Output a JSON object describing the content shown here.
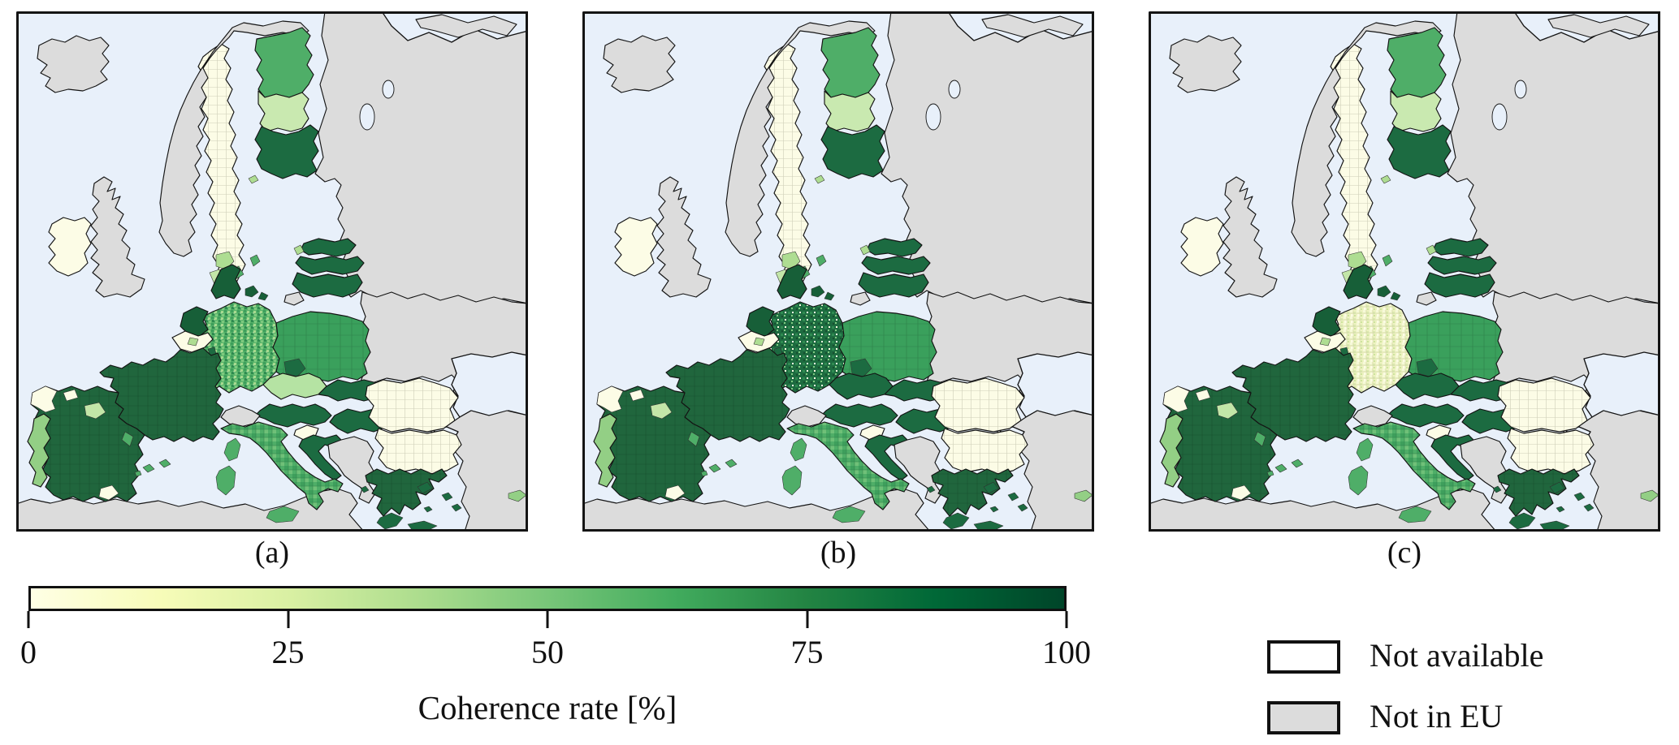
{
  "figure": {
    "background": "#ffffff",
    "panels": [
      {
        "id": "a",
        "label": "(a)",
        "region_overrides": {
          "germany": "de_mixed",
          "czechia": "light_green_cz"
        }
      },
      {
        "id": "b",
        "label": "(b)",
        "region_overrides": {
          "germany": "de_dark",
          "czechia": "dark_green"
        }
      },
      {
        "id": "c",
        "label": "(c)",
        "region_overrides": {
          "germany": "de_pale",
          "czechia": "dark_green"
        }
      }
    ],
    "colorbar": {
      "label": "Coherence rate [%]",
      "ticks": [
        "0",
        "25",
        "50",
        "75",
        "100"
      ],
      "tick_values": [
        0,
        25,
        50,
        75,
        100
      ],
      "range": [
        0,
        100
      ],
      "colormap": "YlGn",
      "gradient": [
        "#ffffe5",
        "#f7fcb9",
        "#d9f0a3",
        "#addd8e",
        "#78c679",
        "#41ab5d",
        "#238443",
        "#006837",
        "#004529"
      ]
    },
    "legend": {
      "items": [
        {
          "label": "Not available",
          "color": "#ffffff"
        },
        {
          "label": "Not in EU",
          "color": "#dcdcdc"
        }
      ]
    },
    "palette": {
      "ocean": "#e8f0fa",
      "not_in_eu": "#dcdcdc",
      "not_available": "#ffffff",
      "cream_solid": "#fcfce6",
      "cream_districts": "url(#patCream)",
      "pale_green": "#c9e9b0",
      "pale_green_2": "#c3e6a8",
      "light_green": "#aedd92",
      "light_green_cz": "#b5e3a3",
      "light_medium_green": "#93cf85",
      "medium_green": "#4fae68",
      "medium_districts": "url(#patPl)",
      "dark_green": "#1c6b41",
      "darker_green": "#175f38",
      "dark_districts": "url(#patFr)",
      "italy_districts": "url(#patIt)",
      "de_mixed": "url(#patDeA)",
      "de_dark": "url(#patDeB)",
      "de_pale": "url(#patDeC)"
    },
    "base_regions": {
      "ocean": "ocean",
      "russia": "not_in_eu",
      "whitesea": "ocean",
      "kola": "not_in_eu",
      "lake1": "ocean",
      "lake2": "ocean",
      "belarus_ukraine": "not_in_eu",
      "black_sea": "ocean",
      "turkey": "not_in_eu",
      "marmara": "ocean",
      "north_africa": "not_in_eu",
      "iceland": "not_in_eu",
      "norway": "not_in_eu",
      "uk": "not_in_eu",
      "switzerland": "not_in_eu",
      "kaliningrad": "not_in_eu",
      "west_balkans": "not_in_eu",
      "sweden": "cream_districts",
      "sweden_patch1": "light_green",
      "sweden_patch2": "pale_green_2",
      "sweden_patch_med": "medium_green",
      "sweden_skane": "dark_green",
      "gotland": "medium_green",
      "finland_north": "medium_green",
      "finland_mid": "pale_green",
      "finland_south": "dark_green",
      "aland": "light_green",
      "estonia": "dark_green",
      "estonia_isles": "light_green",
      "latvia": "dark_green",
      "lithuania": "dark_green",
      "ireland": "cream_solid",
      "denmark": "darker_green",
      "denmark_isles": "darker_green",
      "germany": "de_mixed",
      "netherlands": "darker_green",
      "belgium": "cream_solid",
      "belgium_patch": "light_green",
      "luxembourg": "dark_green",
      "poland": "medium_districts",
      "poland_sw": "dark_green",
      "czechia": "light_green_cz",
      "slovakia": "dark_green",
      "austria": "dark_green",
      "hungary": "dark_green",
      "slovenia": "cream_solid",
      "croatia": "dark_green",
      "romania": "cream_districts",
      "bulgaria": "cream_districts",
      "greece": "dark_districts",
      "peloponnese": "dark_green",
      "crete": "dark_green",
      "euboea": "dark_green",
      "aegean_islands": "dark_green",
      "france": "dark_districts",
      "italy": "italy_districts",
      "corsica": "medium_green",
      "sardinia": "medium_green",
      "sicily": "medium_green",
      "spain": "dark_districts",
      "galicia": "cream_solid",
      "asturias_patch": "cream_solid",
      "ncenter_patch": "pale_green_2",
      "andalusia_patch": "cream_solid",
      "east_patch": "medium_green",
      "portugal": "light_medium_green",
      "balearics": "medium_green",
      "cyprus": "light_medium_green"
    }
  }
}
